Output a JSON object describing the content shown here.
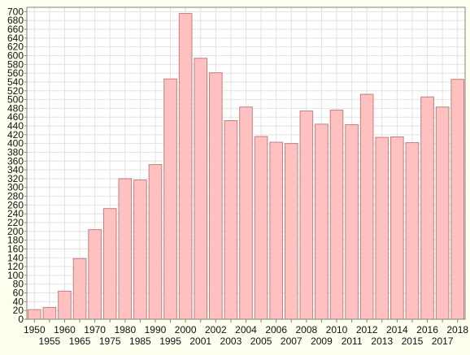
{
  "chart_data": {
    "type": "bar",
    "title": "",
    "xlabel": "",
    "ylabel": "",
    "categories": [
      "1950",
      "1955",
      "1960",
      "1965",
      "1970",
      "1975",
      "1980",
      "1985",
      "1990",
      "1995",
      "2000",
      "2001",
      "2002",
      "2003",
      "2004",
      "2005",
      "2006",
      "2007",
      "2008",
      "2009",
      "2010",
      "2011",
      "2012",
      "2013",
      "2014",
      "2015",
      "2016",
      "2017",
      "2018"
    ],
    "values": [
      22,
      27,
      64,
      138,
      204,
      252,
      320,
      317,
      352,
      547,
      696,
      594,
      561,
      452,
      483,
      416,
      403,
      400,
      474,
      444,
      476,
      443,
      512,
      414,
      415,
      402,
      506,
      483,
      546
    ],
    "ylim": [
      0,
      710
    ],
    "yticks": [
      0,
      20,
      40,
      60,
      80,
      100,
      120,
      140,
      160,
      180,
      200,
      220,
      240,
      260,
      280,
      300,
      320,
      340,
      360,
      380,
      400,
      420,
      440,
      460,
      480,
      500,
      520,
      540,
      560,
      580,
      600,
      620,
      640,
      660,
      680,
      700
    ],
    "grid": true,
    "legend": "none",
    "colors": {
      "bar_fill": "#ffc0c0",
      "bar_stroke": "#c08080",
      "background": "#fffff0",
      "plot_background": "#ffffff",
      "grid": "#e2e2e2",
      "axis": "#808080",
      "text": "#111111"
    }
  }
}
